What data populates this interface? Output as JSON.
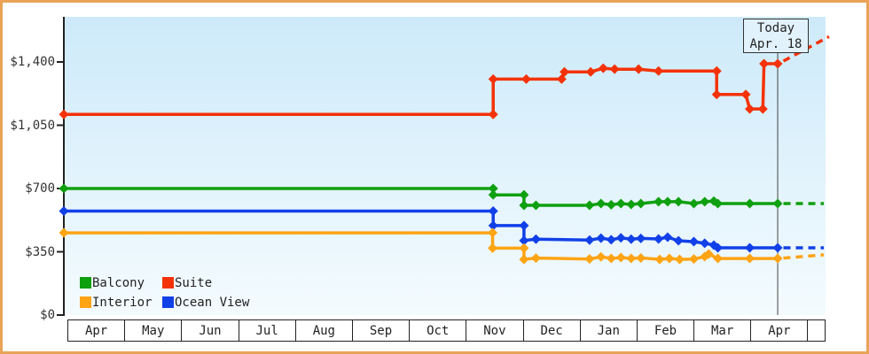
{
  "colors": {
    "frame_border": "#E9A357",
    "plot_bg_top": "#CDEAFA",
    "plot_bg_bottom": "#F4FBFE",
    "axis": "#222222",
    "table_border": "#222222",
    "text": "#333333",
    "today_line": "#444444",
    "today_box_bg": "#E2F2FC",
    "today_box_border": "#333333"
  },
  "chart_data": {
    "type": "line",
    "x_axis": {
      "months": [
        "Apr",
        "May",
        "Jun",
        "Jul",
        "Aug",
        "Sep",
        "Oct",
        "Nov",
        "Dec",
        "Jan",
        "Feb",
        "Mar",
        "Apr"
      ],
      "unit_note": "series x = month offset, 0 = start of first Apr column"
    },
    "y_axis": {
      "ticks": [
        {
          "label": "$0",
          "value": 0
        },
        {
          "label": "$350",
          "value": 350
        },
        {
          "label": "$700",
          "value": 700
        },
        {
          "label": "$1,050",
          "value": 1050
        },
        {
          "label": "$1,400",
          "value": 1400
        }
      ],
      "max_value": 1650,
      "grid": false
    },
    "today": {
      "line1": "Today",
      "line2": "Apr. 18",
      "month_offset": 12.52
    },
    "legend": [
      {
        "label": "Balcony",
        "color": "#0FA00F"
      },
      {
        "label": "Suite",
        "color": "#F43208"
      },
      {
        "label": "Interior",
        "color": "#FFA414"
      },
      {
        "label": "Ocean View",
        "color": "#1140E8"
      }
    ],
    "series": [
      {
        "name": "Balcony",
        "color": "#0FA00F",
        "solid": [
          [
            0,
            700
          ],
          [
            7.53,
            700
          ],
          [
            7.53,
            665
          ],
          [
            8.07,
            665
          ],
          [
            8.07,
            607
          ],
          [
            8.28,
            607
          ],
          [
            9.22,
            607
          ],
          [
            9.42,
            617
          ],
          [
            9.6,
            610
          ],
          [
            9.77,
            617
          ],
          [
            9.95,
            612
          ],
          [
            10.12,
            617
          ],
          [
            10.43,
            627
          ],
          [
            10.59,
            627
          ],
          [
            10.78,
            627
          ],
          [
            11.05,
            617
          ],
          [
            11.24,
            627
          ],
          [
            11.4,
            630
          ],
          [
            11.47,
            617
          ],
          [
            12.03,
            617
          ],
          [
            12.52,
            617
          ]
        ],
        "projected": [
          [
            12.62,
            617
          ],
          [
            13.33,
            617
          ]
        ]
      },
      {
        "name": "Ocean View",
        "color": "#1140E8",
        "solid": [
          [
            0,
            575
          ],
          [
            7.53,
            575
          ],
          [
            7.53,
            495
          ],
          [
            8.07,
            495
          ],
          [
            8.07,
            412
          ],
          [
            8.28,
            420
          ],
          [
            9.22,
            415
          ],
          [
            9.42,
            425
          ],
          [
            9.6,
            417
          ],
          [
            9.77,
            427
          ],
          [
            9.95,
            420
          ],
          [
            10.12,
            424
          ],
          [
            10.43,
            421
          ],
          [
            10.59,
            431
          ],
          [
            10.78,
            411
          ],
          [
            11.05,
            406
          ],
          [
            11.24,
            397
          ],
          [
            11.4,
            387
          ],
          [
            11.47,
            372
          ],
          [
            12.03,
            372
          ],
          [
            12.52,
            372
          ]
        ],
        "projected": [
          [
            12.62,
            372
          ],
          [
            13.33,
            372
          ]
        ]
      },
      {
        "name": "Interior",
        "color": "#FFA414",
        "solid": [
          [
            0,
            455
          ],
          [
            7.52,
            455
          ],
          [
            7.52,
            370
          ],
          [
            8.07,
            370
          ],
          [
            8.07,
            308
          ],
          [
            8.28,
            315
          ],
          [
            9.22,
            310
          ],
          [
            9.42,
            322
          ],
          [
            9.6,
            313
          ],
          [
            9.77,
            318
          ],
          [
            9.95,
            313
          ],
          [
            10.12,
            316
          ],
          [
            10.45,
            308
          ],
          [
            10.62,
            313
          ],
          [
            10.8,
            308
          ],
          [
            11.05,
            310
          ],
          [
            11.24,
            323
          ],
          [
            11.31,
            338
          ],
          [
            11.47,
            313
          ],
          [
            12.03,
            313
          ],
          [
            12.52,
            313
          ]
        ],
        "projected": [
          [
            12.62,
            315
          ],
          [
            13.33,
            333
          ]
        ]
      },
      {
        "name": "Suite",
        "color": "#F43208",
        "solid": [
          [
            0,
            1110
          ],
          [
            7.53,
            1110
          ],
          [
            7.53,
            1305
          ],
          [
            8.11,
            1305
          ],
          [
            8.73,
            1305
          ],
          [
            8.78,
            1345
          ],
          [
            9.24,
            1345
          ],
          [
            9.46,
            1365
          ],
          [
            9.66,
            1360
          ],
          [
            10.08,
            1360
          ],
          [
            10.43,
            1350
          ],
          [
            11.45,
            1350
          ],
          [
            11.45,
            1220
          ],
          [
            11.96,
            1220
          ],
          [
            12.03,
            1140
          ],
          [
            12.26,
            1140
          ],
          [
            12.28,
            1390
          ],
          [
            12.52,
            1390
          ]
        ],
        "projected": [
          [
            12.62,
            1405
          ],
          [
            13.42,
            1540
          ]
        ]
      }
    ]
  }
}
